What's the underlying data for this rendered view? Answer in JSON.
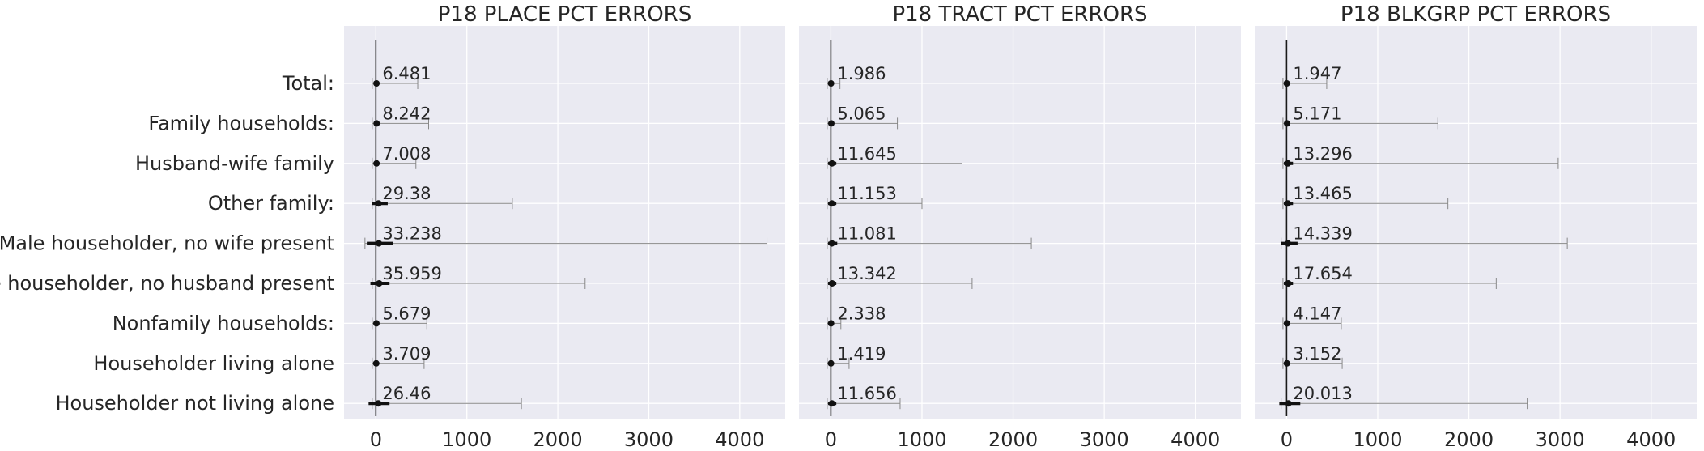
{
  "chart_data": [
    {
      "type": "errorbar",
      "title": "P18 PLACE PCT ERRORS",
      "categories": [
        "Total:",
        "Family households:",
        "Husband-wife family",
        "Other family:",
        "Male householder, no wife present",
        "Female householder, no husband present",
        "Nonfamily households:",
        "Householder living alone",
        "Householder not living alone"
      ],
      "values": [
        6.481,
        8.242,
        7.008,
        29.38,
        33.238,
        35.959,
        5.679,
        3.709,
        26.46
      ],
      "whisker_low": [
        -40,
        -40,
        -40,
        -40,
        -120,
        -40,
        -40,
        -40,
        -40
      ],
      "whisker_high": [
        460,
        580,
        440,
        1500,
        4300,
        2300,
        560,
        530,
        1600
      ],
      "box_low": [
        -10,
        -10,
        -10,
        -40,
        -100,
        -60,
        -10,
        -10,
        -80
      ],
      "box_high": [
        20,
        20,
        20,
        130,
        190,
        150,
        20,
        20,
        150
      ],
      "xlim": [
        -350,
        4500
      ],
      "xticks": [
        "0",
        "1000",
        "2000",
        "3000",
        "4000"
      ],
      "grid": true
    },
    {
      "type": "errorbar",
      "title": "P18 TRACT PCT ERRORS",
      "categories": [
        "Total:",
        "Family households:",
        "Husband-wife family",
        "Other family:",
        "Male householder, no wife present",
        "Female householder, no husband present",
        "Nonfamily households:",
        "Householder living alone",
        "Householder not living alone"
      ],
      "values": [
        1.986,
        5.065,
        11.645,
        11.153,
        11.081,
        13.342,
        2.338,
        1.419,
        11.656
      ],
      "whisker_low": [
        -40,
        -40,
        -40,
        -40,
        -40,
        -40,
        -40,
        -40,
        -40
      ],
      "whisker_high": [
        100,
        730,
        1440,
        1000,
        2200,
        1550,
        110,
        200,
        760
      ],
      "box_low": [
        -10,
        -10,
        -30,
        -30,
        -30,
        -30,
        -10,
        -10,
        -30
      ],
      "box_high": [
        20,
        20,
        60,
        60,
        70,
        60,
        20,
        20,
        60
      ],
      "xlim": [
        -350,
        4500
      ],
      "xticks": [
        "0",
        "1000",
        "2000",
        "3000",
        "4000"
      ],
      "grid": true
    },
    {
      "type": "errorbar",
      "title": "P18 BLKGRP PCT ERRORS",
      "categories": [
        "Total:",
        "Family households:",
        "Husband-wife family",
        "Other family:",
        "Male householder, no wife present",
        "Female householder, no husband present",
        "Nonfamily households:",
        "Householder living alone",
        "Householder not living alone"
      ],
      "values": [
        1.947,
        5.171,
        13.296,
        13.465,
        14.339,
        17.654,
        4.147,
        3.152,
        20.013
      ],
      "whisker_low": [
        -40,
        -40,
        -40,
        -40,
        -60,
        -40,
        -40,
        -40,
        -60
      ],
      "whisker_high": [
        440,
        1660,
        2980,
        1770,
        3080,
        2300,
        600,
        610,
        2640
      ],
      "box_low": [
        -10,
        -10,
        -30,
        -30,
        -60,
        -30,
        -10,
        -10,
        -80
      ],
      "box_high": [
        20,
        20,
        70,
        70,
        120,
        70,
        20,
        20,
        150
      ],
      "xlim": [
        -350,
        4500
      ],
      "xticks": [
        "0",
        "1000",
        "2000",
        "3000",
        "4000"
      ],
      "grid": true
    }
  ]
}
